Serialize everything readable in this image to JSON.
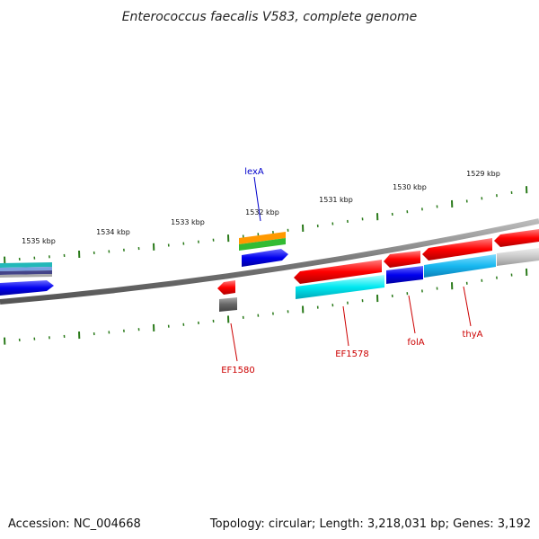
{
  "title": "Enterococcus faecalis V583, complete genome",
  "footer": {
    "accession": "Accession: NC_004668",
    "topology": "Topology: circular; Length: 3,218,031 bp; Genes: 3,192"
  },
  "ticks": [
    "1535 kbp",
    "1534 kbp",
    "1533 kbp",
    "1532 kbp",
    "1531 kbp",
    "1530 kbp",
    "1529 kbp"
  ],
  "gene_labels": [
    {
      "name": "lexA",
      "color": "#0000cc"
    },
    {
      "name": "EF1580",
      "color": "#cc0000"
    },
    {
      "name": "EF1578",
      "color": "#cc0000"
    },
    {
      "name": "folA",
      "color": "#cc0000"
    },
    {
      "name": "thyA",
      "color": "#cc0000"
    }
  ],
  "colors": {
    "backbone": "#777777",
    "ticks": "#2a7a1a",
    "cds_forward": "#ff0000",
    "cds_reverse": "#0000ee",
    "cyan": "#00e8f0",
    "skyblue": "#18b8f0",
    "orange": "#ff9900",
    "green": "#33bb33",
    "gray": "#666666"
  }
}
